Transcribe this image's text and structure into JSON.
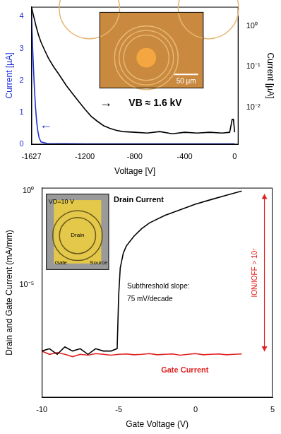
{
  "chart_data": [
    {
      "type": "line",
      "x_label": "Voltage [V]",
      "y_label": "Current [µA]",
      "y2_label": "Current [µA]",
      "xlim": [
        -1627,
        30
      ],
      "xticks": [
        -1627,
        -1200,
        -800,
        -400,
        0
      ],
      "ylim": [
        0,
        4.3
      ],
      "yticks": [
        0,
        1,
        2,
        3,
        4
      ],
      "y2lim": [
        0.0012,
        3
      ],
      "y2ticks": [
        {
          "value": 0.01,
          "label": "10⁻²"
        },
        {
          "value": 0.1,
          "label": "10⁻¹"
        },
        {
          "value": 1,
          "label": "10⁰"
        }
      ],
      "log": "y2",
      "grid": false,
      "series": [
        {
          "color": "#1f2fd6",
          "x": [
            -1627,
            -1615,
            -1605,
            -1595,
            -1585,
            -1575,
            -1565,
            -1550,
            -1500,
            -1200,
            -800,
            -400,
            0
          ],
          "values": [
            4.0,
            2.8,
            1.9,
            1.2,
            0.7,
            0.4,
            0.2,
            0.08,
            0.03,
            0.02,
            0.02,
            0.02,
            0.02
          ]
        },
        {
          "color": "#000000",
          "axis": "y2",
          "x": [
            -1627,
            -1610,
            -1590,
            -1570,
            -1550,
            -1520,
            -1490,
            -1450,
            -1400,
            -1350,
            -1300,
            -1250,
            -1200,
            -1150,
            -1100,
            -1050,
            -1000,
            -950,
            -900,
            -800,
            -700,
            -600,
            -500,
            -400,
            -300,
            -200,
            -100,
            -40,
            -20,
            -10,
            0
          ],
          "values": [
            3.0,
            1.8,
            1.0,
            0.6,
            0.4,
            0.25,
            0.16,
            0.1,
            0.06,
            0.035,
            0.022,
            0.014,
            0.009,
            0.006,
            0.0045,
            0.0035,
            0.003,
            0.0027,
            0.0025,
            0.0024,
            0.0023,
            0.0025,
            0.0022,
            0.0024,
            0.0023,
            0.0024,
            0.0023,
            0.0024,
            0.005,
            0.005,
            0.0024
          ]
        }
      ],
      "annotations": [
        {
          "text": "VB ≈ 1.6 kV"
        },
        {
          "text": "←",
          "color": "#1f2fd6"
        },
        {
          "text": "→",
          "color": "#000000"
        },
        {
          "text": "50 µm"
        }
      ]
    },
    {
      "type": "line",
      "x_label": "Gate Voltage (V)",
      "y_label": "Drain and Gate Current (mA/mm)",
      "xlim": [
        -10,
        5
      ],
      "xticks": [
        -10,
        -5,
        0,
        5
      ],
      "ylim": [
        1e-11,
        1.5
      ],
      "yticks": [
        {
          "value": 1e-05,
          "label": "10⁻⁵"
        },
        {
          "value": 1,
          "label": "10⁰"
        }
      ],
      "log": "y",
      "grid": false,
      "series": [
        {
          "name": "Drain Current",
          "color": "#000000",
          "x": [
            -10,
            -9.5,
            -9,
            -8.5,
            -8,
            -7.5,
            -7,
            -6.5,
            -6,
            -5.5,
            -5.1,
            -5,
            -4.9,
            -4.7,
            -4.5,
            -4,
            -3.5,
            -3,
            -2,
            -1,
            0,
            1,
            2,
            3
          ],
          "values": [
            3e-09,
            4e-09,
            2e-09,
            5e-09,
            3e-09,
            4e-09,
            2e-09,
            4e-09,
            3e-09,
            3e-09,
            4e-09,
            3e-06,
            8e-05,
            0.0005,
            0.0012,
            0.004,
            0.01,
            0.02,
            0.05,
            0.1,
            0.2,
            0.35,
            0.6,
            1.0
          ]
        },
        {
          "name": "Gate Current",
          "color": "#e02020",
          "x": [
            -10,
            -9.5,
            -9,
            -8.5,
            -8,
            -7.5,
            -7,
            -6.5,
            -6,
            -5.5,
            -5,
            -4.5,
            -4,
            -3.5,
            -3,
            -2.5,
            -2,
            -1.5,
            -1,
            -0.5,
            0,
            0.5,
            1,
            1.5,
            2,
            2.5,
            3
          ],
          "values": [
            3e-09,
            2e-09,
            2.5e-09,
            2e-09,
            1.5e-09,
            2e-09,
            1.8e-09,
            2.2e-09,
            2e-09,
            1.8e-09,
            2e-09,
            2.1e-09,
            1.9e-09,
            2e-09,
            2.2e-09,
            1.9e-09,
            2e-09,
            2.1e-09,
            1.8e-09,
            2e-09,
            2.2e-09,
            1.9e-09,
            2e-09,
            2.1e-09,
            1.9e-09,
            2e-09,
            2.1e-09
          ]
        }
      ],
      "annotations": [
        {
          "text": "Subthreshold slope:"
        },
        {
          "text": "75 mV/decade"
        },
        {
          "text": "ION/IOFF > 10⁷",
          "color": "#e02020"
        },
        {
          "text": "VD=10 V"
        },
        {
          "text": "Drain"
        },
        {
          "text": "Gate"
        },
        {
          "text": "Source"
        }
      ]
    }
  ]
}
